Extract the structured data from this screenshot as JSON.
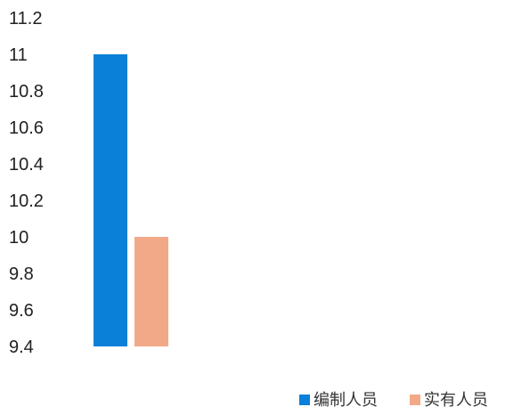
{
  "chart_data": {
    "type": "bar",
    "categories": [
      ""
    ],
    "series": [
      {
        "name": "编制人员",
        "color": "#0b80d8",
        "values": [
          11
        ]
      },
      {
        "name": "实有人员",
        "color": "#f2a987",
        "values": [
          10
        ]
      }
    ],
    "ylim": [
      9.4,
      11.2
    ],
    "yticks": [
      9.4,
      9.6,
      9.8,
      10,
      10.2,
      10.4,
      10.6,
      10.8,
      11,
      11.2
    ],
    "ytick_labels": [
      "9.4",
      "9.6",
      "9.8",
      "10",
      "10.2",
      "10.4",
      "10.6",
      "10.8",
      "11",
      "11.2"
    ],
    "title": "",
    "xlabel": "",
    "ylabel": "",
    "grid": false,
    "legend": "bottom-right"
  }
}
